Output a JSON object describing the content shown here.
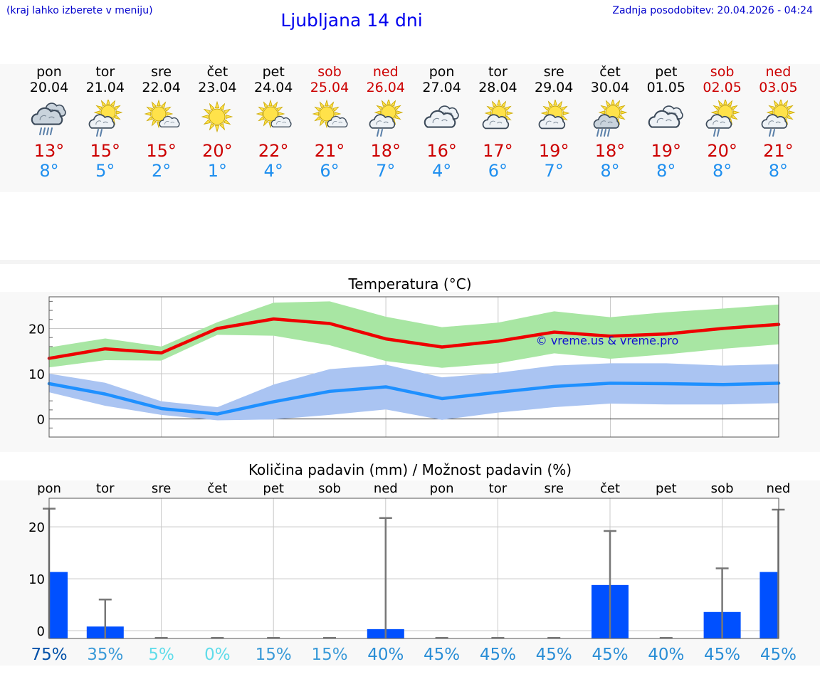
{
  "header": {
    "city_hint": "(kraj lahko izberete v meniju)",
    "title": "Ljubljana 14 dni",
    "last_update": "Zadnja posodobitev: 20.04.2026 - 04:24"
  },
  "colors": {
    "max_line": "#ee0000",
    "max_band": "#a8e6a3",
    "min_line": "#1e90ff",
    "min_band": "#aac4f2",
    "bar": "#0050ff",
    "weekend": "#cc0000"
  },
  "days": [
    {
      "name": "pon",
      "date": "20.04",
      "weekend": false,
      "icon": "cloud-heavy-rain-icon",
      "tmax": "13°",
      "tmin": "8°"
    },
    {
      "name": "tor",
      "date": "21.04",
      "weekend": false,
      "icon": "sun-cloud-rain-icon",
      "tmax": "15°",
      "tmin": "5°"
    },
    {
      "name": "sre",
      "date": "22.04",
      "weekend": false,
      "icon": "sun-small-cloud-icon",
      "tmax": "15°",
      "tmin": "2°"
    },
    {
      "name": "čet",
      "date": "23.04",
      "weekend": false,
      "icon": "sun-icon",
      "tmax": "20°",
      "tmin": "1°"
    },
    {
      "name": "pet",
      "date": "24.04",
      "weekend": false,
      "icon": "sun-small-cloud-icon",
      "tmax": "22°",
      "tmin": "4°"
    },
    {
      "name": "sob",
      "date": "25.04",
      "weekend": true,
      "icon": "sun-small-cloud-icon",
      "tmax": "21°",
      "tmin": "6°"
    },
    {
      "name": "ned",
      "date": "26.04",
      "weekend": true,
      "icon": "sun-cloud-rain-icon",
      "tmax": "18°",
      "tmin": "7°"
    },
    {
      "name": "pon",
      "date": "27.04",
      "weekend": false,
      "icon": "cloudy-icon",
      "tmax": "16°",
      "tmin": "4°"
    },
    {
      "name": "tor",
      "date": "28.04",
      "weekend": false,
      "icon": "sun-cloud-icon",
      "tmax": "17°",
      "tmin": "6°"
    },
    {
      "name": "sre",
      "date": "29.04",
      "weekend": false,
      "icon": "sun-cloud-icon",
      "tmax": "19°",
      "tmin": "7°"
    },
    {
      "name": "čet",
      "date": "30.04",
      "weekend": false,
      "icon": "sun-cloud-heavy-rain-icon",
      "tmax": "18°",
      "tmin": "8°"
    },
    {
      "name": "pet",
      "date": "01.05",
      "weekend": false,
      "icon": "cloudy-icon",
      "tmax": "19°",
      "tmin": "8°"
    },
    {
      "name": "sob",
      "date": "02.05",
      "weekend": true,
      "icon": "sun-cloud-rain-icon",
      "tmax": "20°",
      "tmin": "8°"
    },
    {
      "name": "ned",
      "date": "03.05",
      "weekend": true,
      "icon": "sun-cloud-rain-icon",
      "tmax": "21°",
      "tmin": "8°"
    }
  ],
  "chart_data": [
    {
      "type": "line",
      "title": "Temperatura (°C)",
      "watermark": "© vreme.us & vreme.pro",
      "x": [
        0,
        1,
        2,
        3,
        4,
        5,
        6,
        7,
        8,
        9,
        10,
        11,
        12,
        13
      ],
      "ylim": [
        -4,
        27
      ],
      "yticks": [
        0,
        10,
        20
      ],
      "grid": true,
      "series": [
        {
          "name": "max",
          "values": [
            13.4,
            15.5,
            14.6,
            20.0,
            22.1,
            21.1,
            17.7,
            15.9,
            17.2,
            19.2,
            18.3,
            18.8,
            20.0,
            20.9
          ],
          "band_low": [
            11.4,
            13.0,
            12.9,
            18.6,
            18.4,
            16.3,
            12.8,
            11.3,
            12.3,
            14.5,
            13.3,
            14.3,
            15.5,
            16.5
          ],
          "band_high": [
            15.8,
            17.8,
            16.0,
            21.4,
            25.7,
            26.0,
            22.6,
            20.3,
            21.3,
            23.8,
            22.5,
            23.6,
            24.4,
            25.3
          ]
        },
        {
          "name": "min",
          "values": [
            7.8,
            5.5,
            2.3,
            1.1,
            3.8,
            6.1,
            7.1,
            4.5,
            5.9,
            7.2,
            7.9,
            7.8,
            7.6,
            7.9
          ],
          "band_low": [
            5.9,
            2.9,
            0.9,
            -0.3,
            -0.1,
            0.9,
            2.1,
            -0.2,
            1.4,
            2.6,
            3.4,
            3.2,
            3.2,
            3.5
          ],
          "band_high": [
            10.0,
            8.0,
            3.9,
            2.6,
            7.6,
            11.0,
            12.0,
            9.2,
            10.2,
            11.8,
            12.3,
            12.3,
            11.8,
            12.1
          ]
        }
      ]
    },
    {
      "type": "bar",
      "title": "Količina padavin (mm) / Možnost padavin (%)",
      "categories": [
        "pon",
        "tor",
        "sre",
        "čet",
        "pet",
        "sob",
        "ned",
        "pon",
        "tor",
        "sre",
        "čet",
        "pet",
        "sob",
        "ned"
      ],
      "ylim": [
        -1.5,
        25.5
      ],
      "yticks": [
        0,
        10,
        20
      ],
      "grid": true,
      "values": [
        11.3,
        0.8,
        0.0,
        0.0,
        0.0,
        0.0,
        0.3,
        0.0,
        0.0,
        0.0,
        8.8,
        0.0,
        3.6,
        11.3
      ],
      "error_high": [
        23.5,
        6.0,
        0.0,
        0.0,
        0.0,
        0.0,
        21.7,
        0.0,
        0.0,
        0.0,
        19.2,
        0.0,
        12.0,
        23.3
      ],
      "probability": [
        "75%",
        "35%",
        "5%",
        "0%",
        "15%",
        "15%",
        "40%",
        "45%",
        "45%",
        "45%",
        "45%",
        "40%",
        "45%",
        "45%"
      ],
      "probability_colors": [
        "#0050a8",
        "#3a9ad8",
        "#60dcea",
        "#60dcea",
        "#3a9ad8",
        "#3a9ad8",
        "#2a8ed6",
        "#2a8ed6",
        "#2a8ed6",
        "#2a8ed6",
        "#2a8ed6",
        "#2a8ed6",
        "#2a8ed6",
        "#2a8ed6"
      ]
    }
  ]
}
